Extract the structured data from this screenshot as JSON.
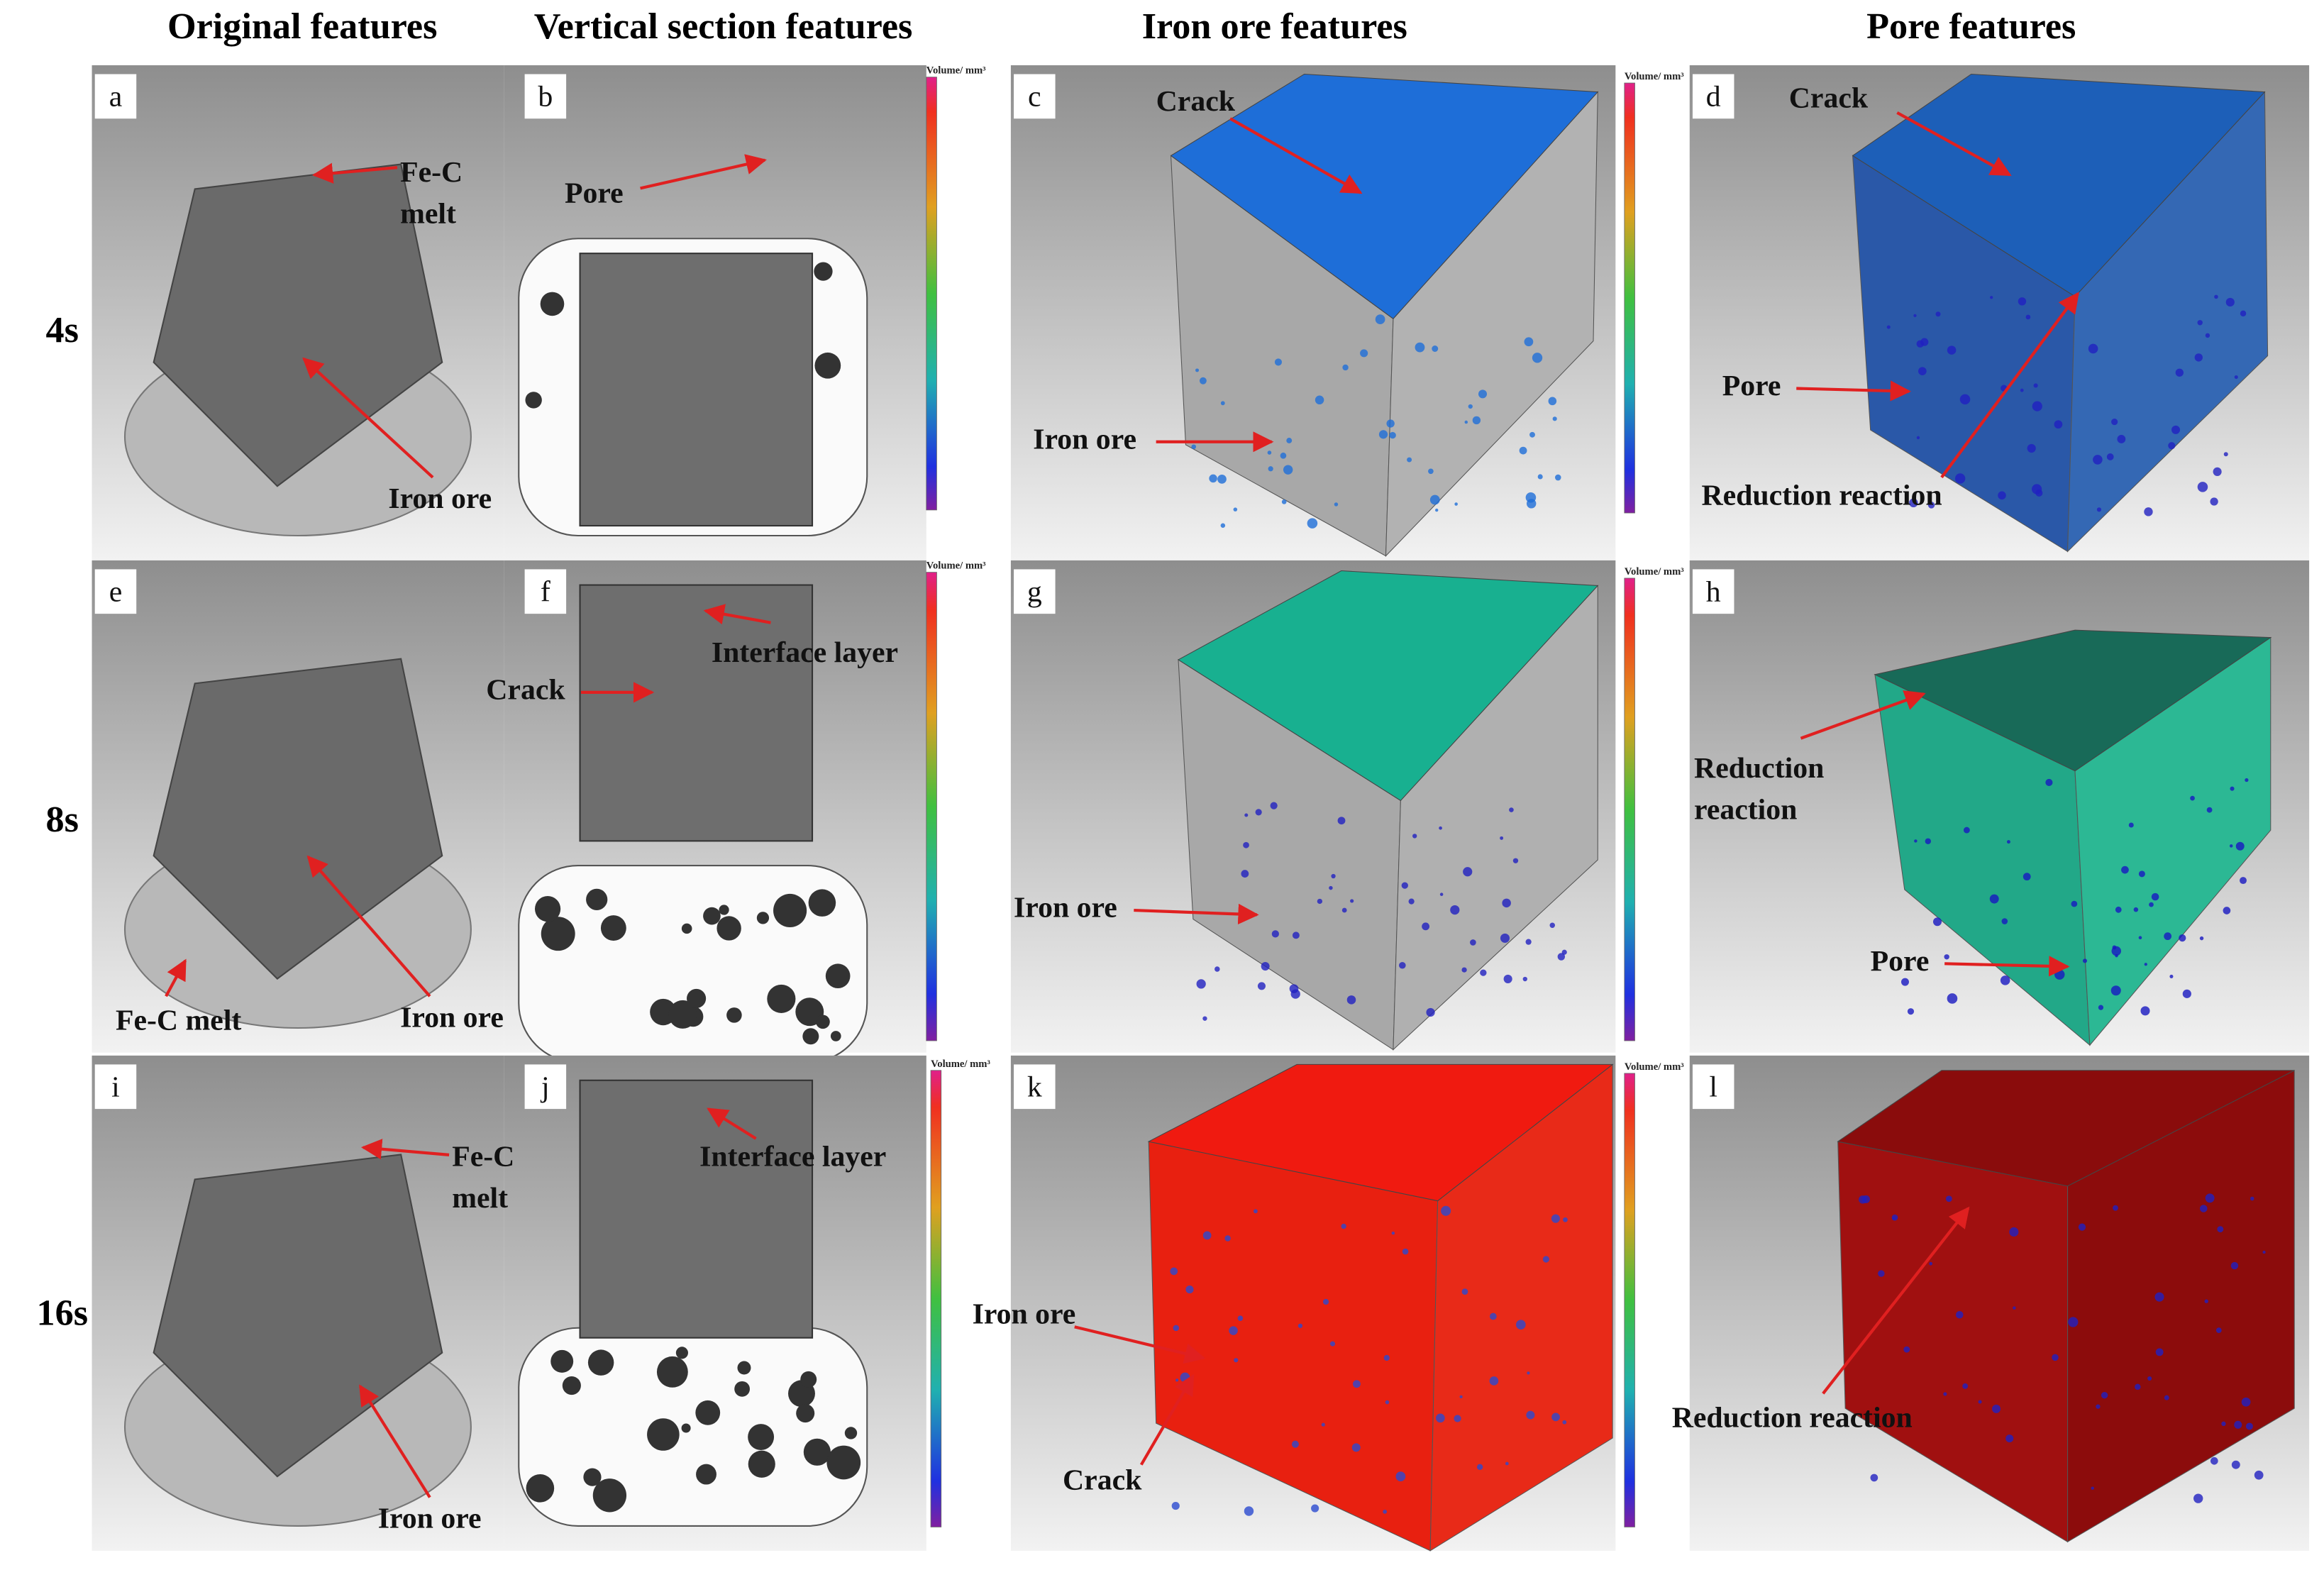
{
  "column_headers": [
    "Original features",
    "Vertical section features",
    "Iron ore features",
    "Pore features"
  ],
  "row_labels": [
    "4s",
    "8s",
    "16s"
  ],
  "colorbar_title": "Volume/ mm³",
  "panels": [
    {
      "letter": "a",
      "labels": [
        {
          "lines": [
            "Fe-C",
            "melt"
          ]
        },
        {
          "lines": [
            "Iron ore"
          ]
        }
      ]
    },
    {
      "letter": "b",
      "labels": [
        {
          "lines": [
            "Pore"
          ]
        }
      ]
    },
    {
      "letter": "c",
      "labels": [
        {
          "lines": [
            "Crack"
          ]
        },
        {
          "lines": [
            "Iron ore"
          ]
        }
      ]
    },
    {
      "letter": "d",
      "labels": [
        {
          "lines": [
            "Crack"
          ]
        },
        {
          "lines": [
            "Pore"
          ]
        },
        {
          "lines": [
            "Reduction reaction"
          ]
        }
      ]
    },
    {
      "letter": "e",
      "labels": [
        {
          "lines": [
            "Fe-C melt"
          ]
        },
        {
          "lines": [
            "Iron ore"
          ]
        }
      ]
    },
    {
      "letter": "f",
      "labels": [
        {
          "lines": [
            "Interface layer"
          ]
        },
        {
          "lines": [
            "Crack"
          ]
        }
      ]
    },
    {
      "letter": "g",
      "labels": [
        {
          "lines": [
            "Iron ore"
          ]
        }
      ]
    },
    {
      "letter": "h",
      "labels": [
        {
          "lines": [
            "Reduction",
            "reaction"
          ]
        },
        {
          "lines": [
            "Pore"
          ]
        }
      ]
    },
    {
      "letter": "i",
      "labels": [
        {
          "lines": [
            "Fe-C",
            "melt"
          ]
        },
        {
          "lines": [
            "Iron ore"
          ]
        }
      ]
    },
    {
      "letter": "j",
      "labels": [
        {
          "lines": [
            "Interface layer"
          ]
        }
      ]
    },
    {
      "letter": "k",
      "labels": [
        {
          "lines": [
            "Iron ore"
          ]
        },
        {
          "lines": [
            "Crack"
          ]
        }
      ]
    },
    {
      "letter": "l",
      "labels": [
        {
          "lines": [
            "Reduction reaction"
          ]
        }
      ]
    }
  ]
}
